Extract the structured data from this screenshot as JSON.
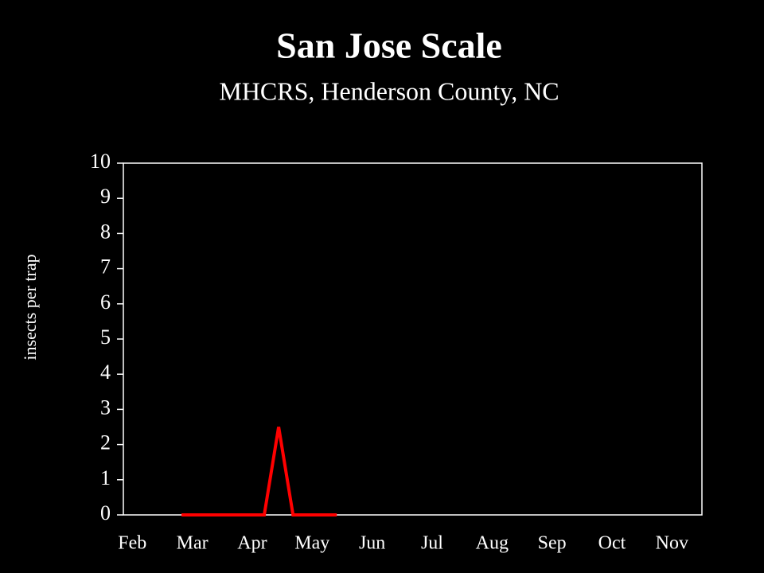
{
  "chart_data": {
    "type": "line",
    "title": "San Jose Scale",
    "subtitle": "MHCRS, Henderson County, NC",
    "y_label": "insects per trap",
    "x": [
      0.82,
      1.06,
      1.3,
      1.54,
      1.78,
      2.0,
      2.2,
      2.44,
      2.68,
      2.92,
      3.17,
      3.41
    ],
    "series": [
      {
        "name": "San Jose Scale",
        "color": "#ff0000",
        "values": [
          0,
          0,
          0,
          0,
          0,
          0,
          0,
          2.5,
          0,
          0,
          0,
          0
        ]
      }
    ],
    "xlim": [
      -0.15,
      9.5
    ],
    "xticks": [
      {
        "value": 0,
        "label": "Feb"
      },
      {
        "value": 1,
        "label": "Mar"
      },
      {
        "value": 2,
        "label": "Apr"
      },
      {
        "value": 3,
        "label": "May"
      },
      {
        "value": 4,
        "label": "Jun"
      },
      {
        "value": 5,
        "label": "Jul"
      },
      {
        "value": 6,
        "label": "Aug"
      },
      {
        "value": 7,
        "label": "Sep"
      },
      {
        "value": 8,
        "label": "Oct"
      },
      {
        "value": 9,
        "label": "Nov"
      }
    ],
    "ylim": [
      0,
      10
    ],
    "yticks": [
      0,
      1,
      2,
      3,
      4,
      5,
      6,
      7,
      8,
      9,
      10
    ],
    "grid": false
  }
}
